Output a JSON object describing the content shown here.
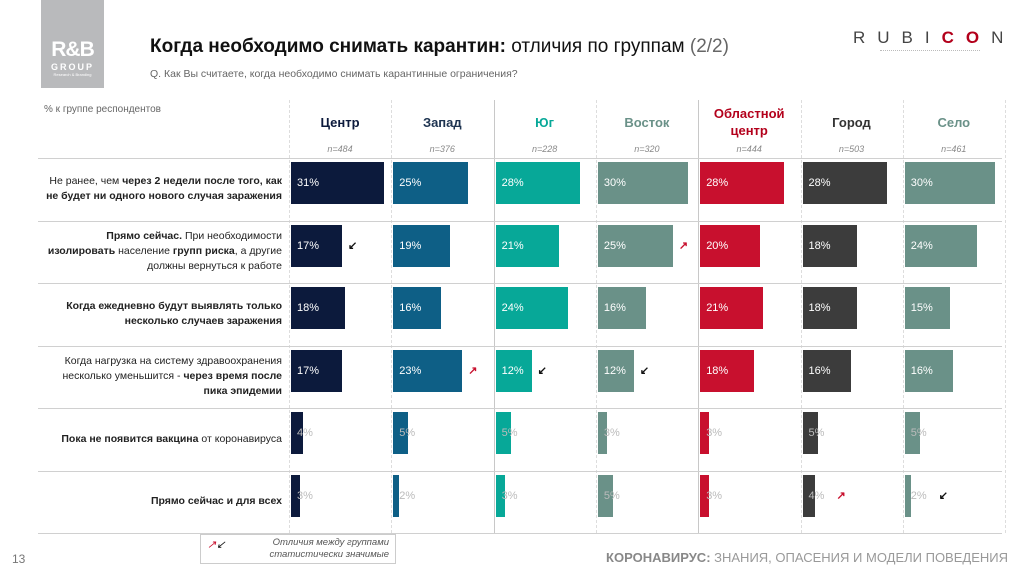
{
  "logo": {
    "line1": "R&B",
    "line2": "GROUP",
    "line3": "Research & Branding"
  },
  "header": {
    "title_bold": "Когда необходимо снимать карантин:",
    "title_rest": " отличия по группам ",
    "title_page": "(2/2)",
    "question": "Q. Как Вы считаете, когда необходимо снимать карантинные ограничения?"
  },
  "brand": {
    "r1": "RUBI",
    "r2": "CO",
    "r3": "N"
  },
  "chart_data": {
    "type": "table",
    "unit_label": "% к группе респондентов",
    "groups": [
      {
        "name": "Центр",
        "n": "n=484",
        "color": "#0c1a3c",
        "head_color": "#0c1a3c"
      },
      {
        "name": "Запад",
        "n": "n=376",
        "color": "#0e5f86",
        "head_color": "#1d3350"
      },
      {
        "name": "Юг",
        "n": "n=228",
        "color": "#07a898",
        "head_color": "#07a898"
      },
      {
        "name": "Восток",
        "n": "n=320",
        "color": "#6a9188",
        "head_color": "#6a9188"
      },
      {
        "name": "Областной центр",
        "n": "n=444",
        "color": "#c8102e",
        "head_color": "#b3001b"
      },
      {
        "name": "Город",
        "n": "n=503",
        "color": "#3c3c3c",
        "head_color": "#333333"
      },
      {
        "name": "Село",
        "n": "n=461",
        "color": "#6a9188",
        "head_color": "#6a9188"
      }
    ],
    "rows": [
      {
        "label_html": "Не ранее, чем <b>через 2 недели после того, как не будет ни одного нового случая заражения</b>",
        "values": [
          31,
          25,
          28,
          30,
          28,
          28,
          30
        ],
        "significance": [
          null,
          null,
          null,
          null,
          null,
          null,
          null
        ]
      },
      {
        "label_html": "<b>Прямо сейчас.</b> При необходимости <b>изолировать</b> население <b>групп риска</b>, а другие должны вернуться к работе",
        "values": [
          17,
          19,
          21,
          25,
          20,
          18,
          24
        ],
        "significance": [
          "down",
          null,
          null,
          "up",
          null,
          null,
          null
        ]
      },
      {
        "label_html": "<b>Когда ежедневно будут выявлять только несколько случаев заражения</b>",
        "values": [
          18,
          16,
          24,
          16,
          21,
          18,
          15
        ],
        "significance": [
          null,
          null,
          null,
          null,
          null,
          null,
          null
        ]
      },
      {
        "label_html": "Когда нагрузка на систему здравоохранения несколько уменьшится - <b>через время после пика эпидемии</b>",
        "values": [
          17,
          23,
          12,
          12,
          18,
          16,
          16
        ],
        "significance": [
          null,
          "up",
          "down",
          "down",
          null,
          null,
          null
        ]
      },
      {
        "label_html": "<b>Пока не появится вакцина</b> от коронавируса",
        "values": [
          4,
          5,
          5,
          3,
          3,
          5,
          5
        ],
        "significance": [
          null,
          null,
          null,
          null,
          null,
          null,
          null
        ]
      },
      {
        "label_html": "<b>Прямо сейчас и для всех</b>",
        "values": [
          3,
          2,
          3,
          5,
          3,
          4,
          2
        ],
        "significance": [
          null,
          null,
          null,
          null,
          null,
          "up",
          "down"
        ]
      }
    ],
    "significance_colors": {
      "up": "#c8102e",
      "down": "#111111"
    }
  },
  "legend": {
    "up_icon": "arrow-up-right-icon",
    "down_icon": "arrow-down-left-icon",
    "text1": "Отличия между группами",
    "text2": "статистически значимые"
  },
  "footer": {
    "page": "13",
    "bold": "КОРОНАВИРУС:",
    "rest": " ЗНАНИЯ, ОПАСЕНИЯ И МОДЕЛИ ПОВЕДЕНИЯ"
  }
}
